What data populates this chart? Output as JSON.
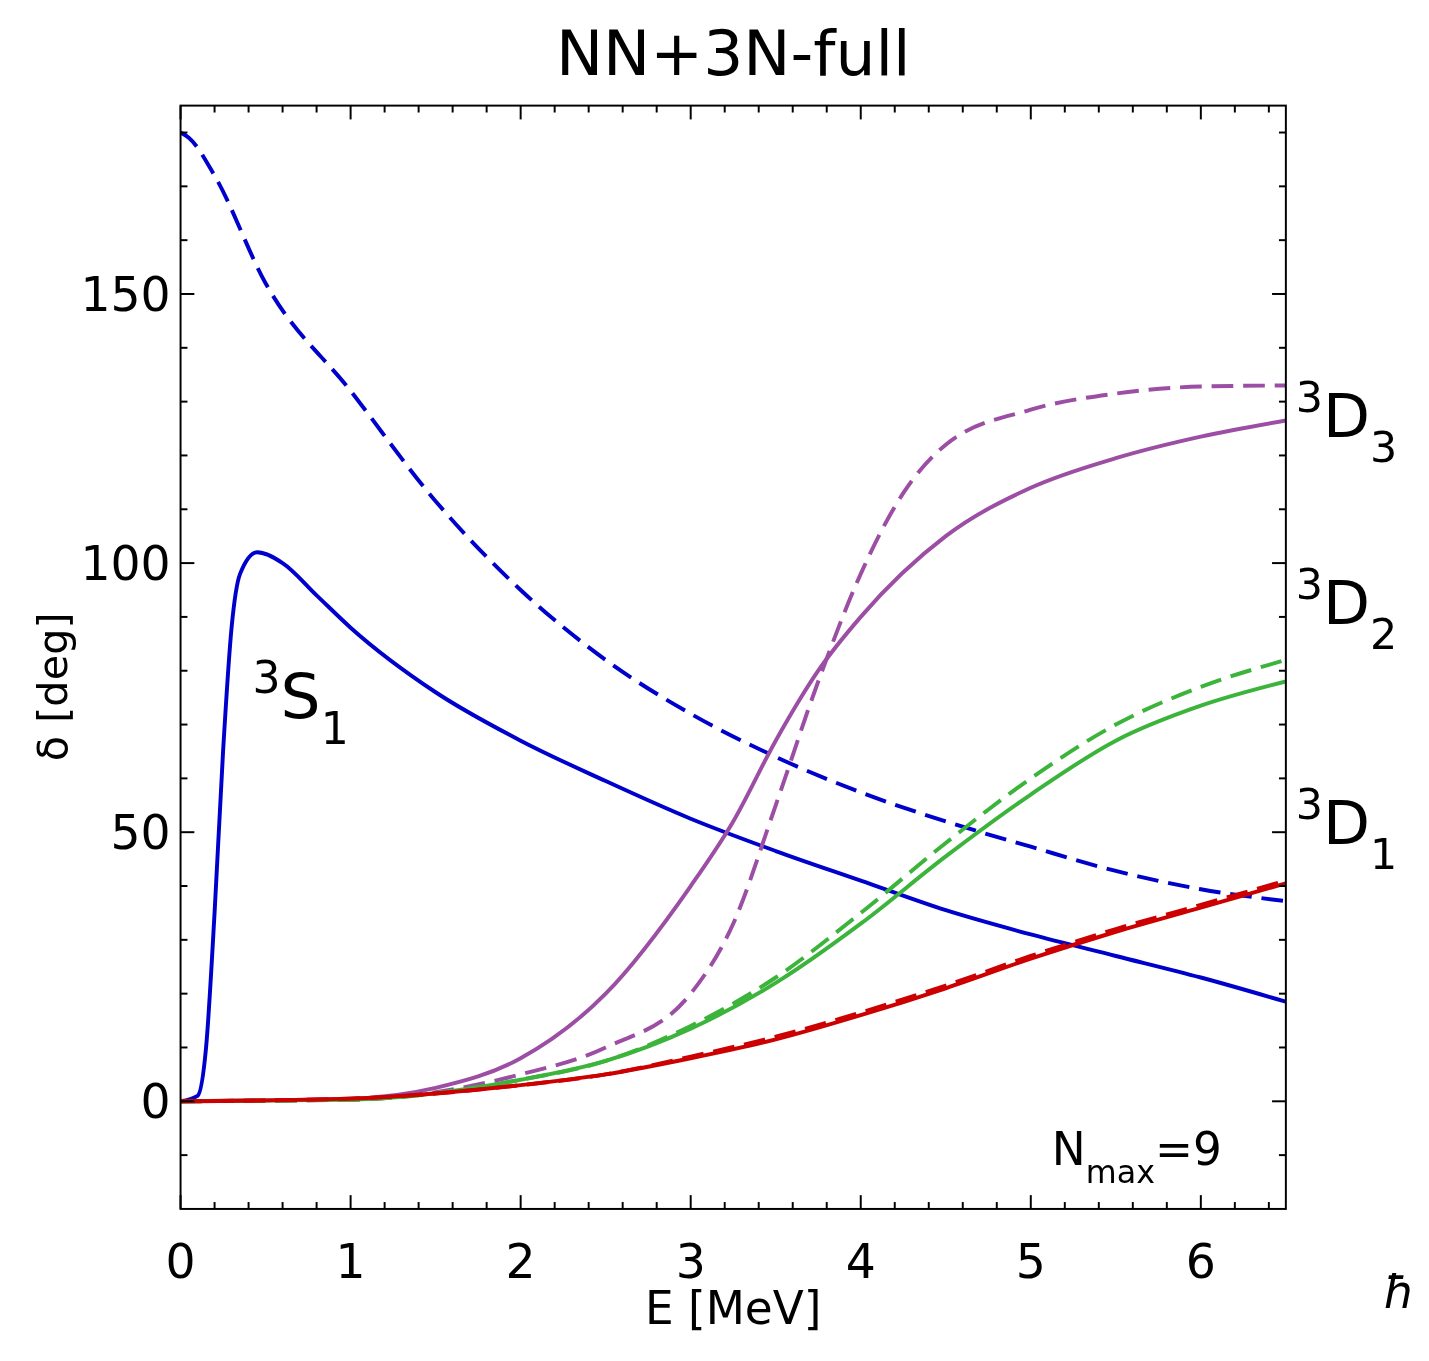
{
  "chart_data": {
    "type": "line",
    "title": "NN+3N-full",
    "xlabel": "E [MeV]",
    "ylabel": "δ [deg]",
    "xlim": [
      0,
      6.5
    ],
    "ylim": [
      -20,
      185
    ],
    "xticks": [
      0,
      {
        "value": 0.2,
        "label": null
      },
      {
        "value": 0.4,
        "label": null
      },
      {
        "value": 0.6,
        "label": null
      },
      {
        "value": 0.8,
        "label": null
      },
      1,
      {
        "value": 1.2,
        "label": null
      },
      {
        "value": 1.4,
        "label": null
      },
      {
        "value": 1.6,
        "label": null
      },
      {
        "value": 1.8,
        "label": null
      },
      2,
      {
        "value": 2.2,
        "label": null
      },
      {
        "value": 2.4,
        "label": null
      },
      {
        "value": 2.6,
        "label": null
      },
      {
        "value": 2.8,
        "label": null
      },
      3,
      {
        "value": 3.2,
        "label": null
      },
      {
        "value": 3.4,
        "label": null
      },
      {
        "value": 3.6,
        "label": null
      },
      {
        "value": 3.8,
        "label": null
      },
      4,
      {
        "value": 4.2,
        "label": null
      },
      {
        "value": 4.4,
        "label": null
      },
      {
        "value": 4.6,
        "label": null
      },
      {
        "value": 4.8,
        "label": null
      },
      5,
      {
        "value": 5.2,
        "label": null
      },
      {
        "value": 5.4,
        "label": null
      },
      {
        "value": 5.6,
        "label": null
      },
      {
        "value": 5.8,
        "label": null
      },
      6,
      {
        "value": 6.2,
        "label": null
      },
      {
        "value": 6.4,
        "label": null
      }
    ],
    "yticks": [
      {
        "value": -10,
        "label": null
      },
      0,
      {
        "value": 10,
        "label": null
      },
      {
        "value": 20,
        "label": null
      },
      {
        "value": 30,
        "label": null
      },
      {
        "value": 40,
        "label": null
      },
      50,
      {
        "value": 60,
        "label": null
      },
      {
        "value": 70,
        "label": null
      },
      {
        "value": 80,
        "label": null
      },
      {
        "value": 90,
        "label": null
      },
      100,
      {
        "value": 110,
        "label": null
      },
      {
        "value": 120,
        "label": null
      },
      {
        "value": 130,
        "label": null
      },
      {
        "value": 140,
        "label": null
      },
      150,
      {
        "value": 160,
        "label": null
      },
      {
        "value": 170,
        "label": null
      },
      {
        "value": 180,
        "label": null
      }
    ],
    "grid": false,
    "series": [
      {
        "color": "#0000cc",
        "line_style": "dashed",
        "x": [
          0,
          0.05,
          0.2,
          0.5,
          1,
          1.5,
          2,
          2.5,
          3,
          3.5,
          4,
          4.5,
          5,
          5.5,
          6,
          6.5
        ],
        "values": [
          180,
          179,
          172,
          152,
          132,
          111.5,
          95,
          82,
          72,
          64,
          57.4,
          52,
          47.3,
          42.8,
          39.4,
          37.2
        ]
      },
      {
        "color": "#0000cc",
        "line_style": "solid",
        "x": [
          0,
          0.1,
          0.15,
          0.2,
          0.25,
          0.3,
          0.35,
          0.45,
          0.6,
          0.8,
          1,
          1.5,
          2,
          2.5,
          3,
          3.5,
          4,
          4.5,
          5,
          5.5,
          6,
          6.5
        ],
        "values": [
          0,
          1,
          10,
          35,
          65,
          88,
          98,
          102,
          100,
          94,
          88,
          76,
          67,
          59.5,
          52.5,
          46.5,
          41,
          35.5,
          31,
          27,
          23,
          18.5
        ]
      },
      {
        "color": "#9b4ea3",
        "line_style": "solid",
        "x": [
          0,
          1,
          1.5,
          2,
          2.5,
          3,
          3.25,
          3.5,
          3.75,
          4,
          4.5,
          5,
          5.5,
          6,
          6.5
        ],
        "values": [
          0,
          0.5,
          2.5,
          8,
          20,
          40,
          52,
          67,
          80,
          90,
          105,
          114,
          119.5,
          123.5,
          126.5
        ]
      },
      {
        "color": "#9b4ea3",
        "line_style": "dashed",
        "x": [
          0,
          1,
          2,
          2.5,
          3,
          3.25,
          3.5,
          3.75,
          4,
          4.25,
          4.5,
          5,
          5.5,
          6,
          6.5
        ],
        "values": [
          0,
          0.3,
          5,
          10,
          20,
          33,
          55,
          78,
          98,
          113,
          122,
          128.5,
          131.5,
          132.8,
          133
        ]
      },
      {
        "color": "#3cb43c",
        "line_style": "solid",
        "x": [
          0,
          1,
          2,
          2.5,
          3,
          3.5,
          4,
          4.5,
          5,
          5.5,
          6,
          6.5
        ],
        "values": [
          0,
          0.3,
          4,
          7.5,
          13.5,
          22,
          33,
          45.5,
          57,
          67,
          73.5,
          78
        ]
      },
      {
        "color": "#3cb43c",
        "line_style": "dashed",
        "x": [
          0,
          1,
          2,
          2.5,
          3,
          3.5,
          4,
          4.5,
          5,
          5.5,
          6,
          6.5
        ],
        "values": [
          0,
          0.3,
          4,
          7.5,
          14,
          23,
          35,
          48,
          60,
          70,
          77,
          82
        ]
      },
      {
        "color": "#cc0000",
        "line_style": "solid",
        "x": [
          0,
          1,
          2,
          2.5,
          3,
          3.5,
          4,
          4.5,
          5,
          5.5,
          6,
          6.5
        ],
        "values": [
          0,
          0.5,
          3,
          5,
          8,
          11.5,
          16,
          21,
          26.5,
          31.5,
          36,
          40.5
        ]
      },
      {
        "color": "#cc0000",
        "line_style": "dashed",
        "x": [
          0,
          1,
          2,
          2.5,
          3,
          3.5,
          4,
          4.5,
          5,
          5.5,
          6,
          6.5
        ],
        "values": [
          0,
          0.5,
          3,
          5,
          8.3,
          12,
          16.5,
          21.5,
          27,
          32,
          36.5,
          41
        ]
      }
    ],
    "annotations": [
      "$^{3}$S$_{1}$",
      "$^{3}$D$_{3}$",
      "$^{3}$D$_{2}$",
      "$^{3}$D$_{1}$",
      "N$_{max}$=9",
      "ħ"
    ]
  }
}
